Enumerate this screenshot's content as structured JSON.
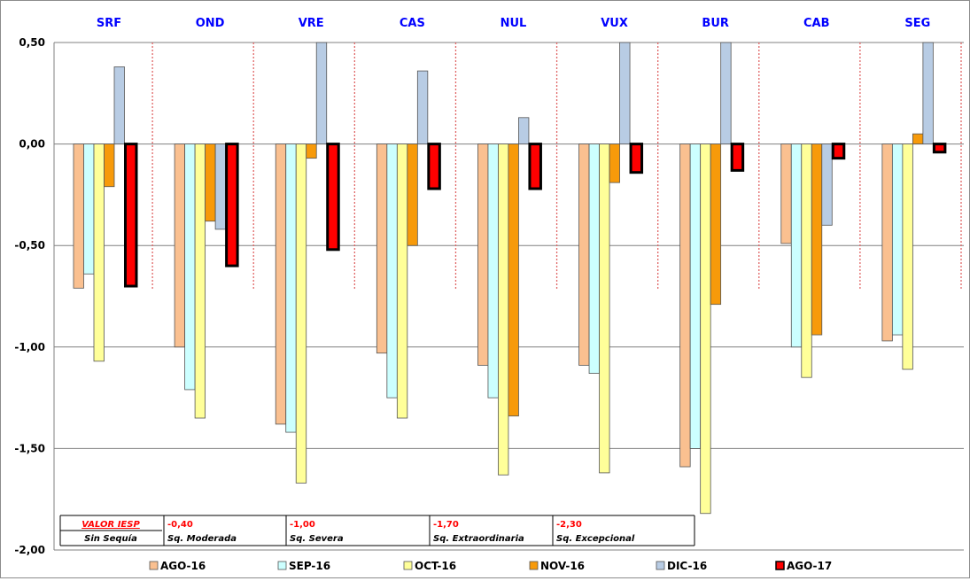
{
  "chart_data": {
    "type": "bar",
    "categories": [
      "SRF",
      "OND",
      "VRE",
      "CAS",
      "NUL",
      "VUX",
      "BUR",
      "CAB",
      "SEG"
    ],
    "ylim": [
      -2.0,
      0.5
    ],
    "yticks": [
      "0,50",
      "0,00",
      "-0,50",
      "-1,00",
      "-1,50",
      "-2,00"
    ],
    "ytick_values": [
      0.5,
      0.0,
      -0.5,
      -1.0,
      -1.5,
      -2.0
    ],
    "grid": true,
    "legend": "bottom",
    "series": [
      {
        "name": "AGO-16",
        "color": "#fac090",
        "values": [
          -0.71,
          -1.0,
          -1.38,
          -1.03,
          -1.09,
          -1.09,
          -1.59,
          -0.49,
          -0.97
        ]
      },
      {
        "name": "SEP-16",
        "color": "#ccffff",
        "values": [
          -0.64,
          -1.21,
          -1.42,
          -1.25,
          -1.25,
          -1.13,
          -1.5,
          -1.0,
          -0.94
        ]
      },
      {
        "name": "OCT-16",
        "color": "#ffff99",
        "values": [
          -1.07,
          -1.35,
          -1.67,
          -1.35,
          -1.63,
          -1.62,
          -1.82,
          -1.15,
          -1.11
        ]
      },
      {
        "name": "NOV-16",
        "color": "#f79a0a",
        "values": [
          -0.21,
          -0.38,
          -0.07,
          -0.5,
          -1.34,
          -0.19,
          -0.79,
          -0.94,
          0.05
        ]
      },
      {
        "name": "DIC-16",
        "color": "#b8cce4",
        "values": [
          0.38,
          -0.42,
          0.5,
          0.36,
          0.13,
          0.5,
          0.5,
          -0.4,
          0.5
        ]
      },
      {
        "name": "AGO-17",
        "color": "#ff0000",
        "values": [
          -0.7,
          -0.6,
          -0.52,
          -0.22,
          -0.22,
          -0.14,
          -0.13,
          -0.07,
          -0.04
        ]
      }
    ]
  },
  "iesp_table": {
    "header": "VALOR IESP",
    "cells": [
      {
        "value": "",
        "label": "Sin Sequía"
      },
      {
        "value": "-0,40",
        "label": "Sq. Moderada"
      },
      {
        "value": "-1,00",
        "label": "Sq. Severa"
      },
      {
        "value": "-1,70",
        "label": "Sq. Extraordinaria"
      },
      {
        "value": "-2,30",
        "label": "Sq. Excepcional"
      }
    ]
  },
  "colors": {
    "station_label": "#0000ff",
    "separator": "#e06666",
    "grid": "#808080",
    "bar_outline": "#555555",
    "highlight_outline": "#000000"
  }
}
